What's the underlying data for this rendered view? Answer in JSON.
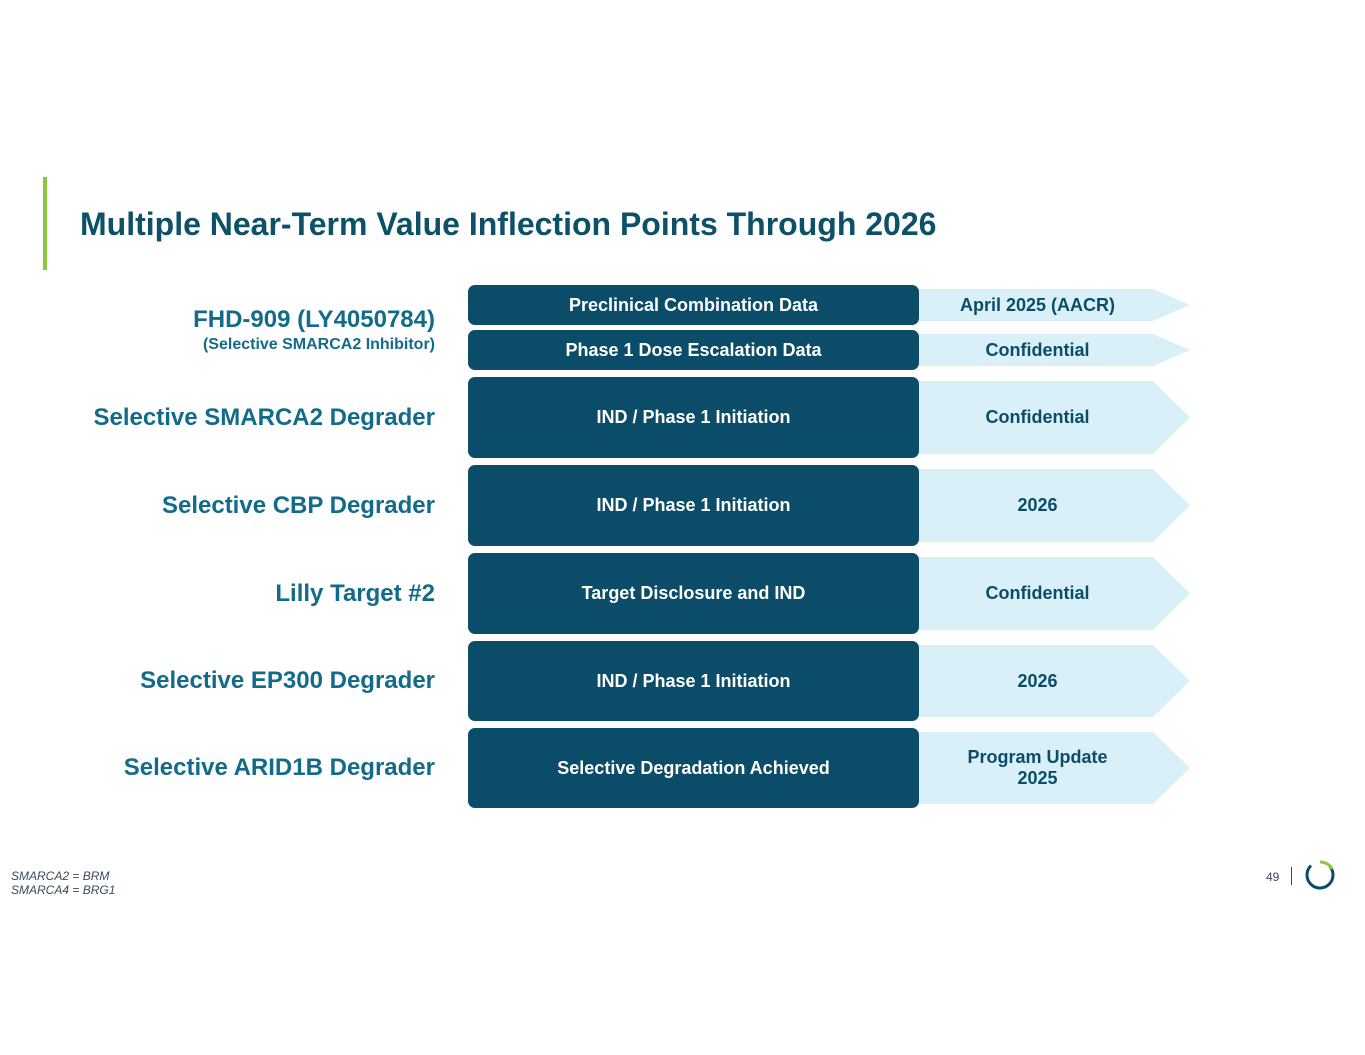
{
  "header": {
    "title": "Multiple Near-Term Value Inflection Points Through 2026"
  },
  "programs": [
    {
      "name": "FHD-909 (LY4050784)",
      "subtitle": "(Selective SMARCA2 Inhibitor)",
      "milestones": [
        {
          "event": "Preclinical Combination Data",
          "timing": "April 2025 (AACR)"
        },
        {
          "event": "Phase 1 Dose Escalation Data",
          "timing": "Confidential"
        }
      ]
    },
    {
      "name": "Selective SMARCA2 Degrader",
      "milestones": [
        {
          "event": "IND / Phase 1 Initiation",
          "timing": "Confidential"
        }
      ]
    },
    {
      "name": "Selective CBP Degrader",
      "milestones": [
        {
          "event": "IND / Phase 1 Initiation",
          "timing": "2026"
        }
      ]
    },
    {
      "name": "Lilly Target #2",
      "milestones": [
        {
          "event": "Target Disclosure and IND",
          "timing": "Confidential"
        }
      ]
    },
    {
      "name": "Selective EP300 Degrader",
      "milestones": [
        {
          "event": "IND / Phase 1 Initiation",
          "timing": "2026"
        }
      ]
    },
    {
      "name": "Selective ARID1B Degrader",
      "milestones": [
        {
          "event": "Selective Degradation Achieved",
          "timing": "Program Update 2025"
        }
      ]
    }
  ],
  "footnotes": [
    "SMARCA2 = BRM",
    "SMARCA4 = BRG1"
  ],
  "page_number": "49"
}
